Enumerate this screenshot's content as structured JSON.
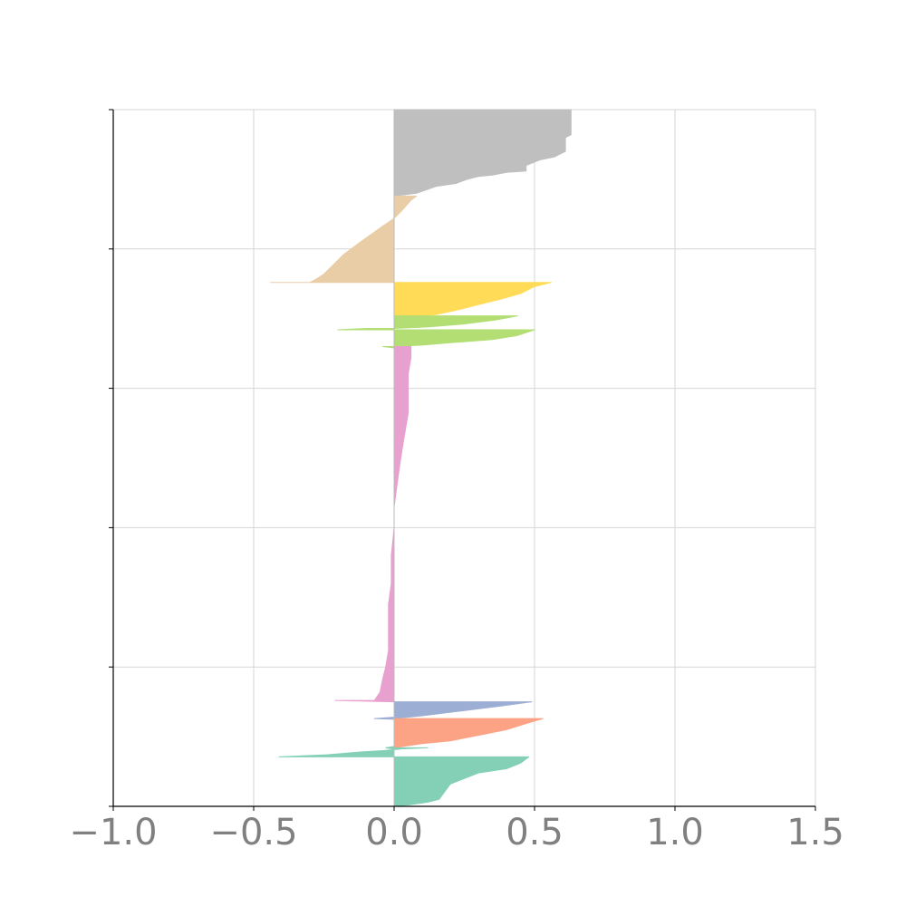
{
  "chart_data": {
    "type": "area",
    "title": "",
    "xlabel": "",
    "ylabel": "",
    "xlim": [
      -1.0,
      1.5
    ],
    "ylim": [
      0,
      5
    ],
    "x_ticks": [
      -1.0,
      -0.5,
      0.0,
      0.5,
      1.0,
      1.5
    ],
    "x_tick_labels": [
      "−1.0",
      "−0.5",
      "0.0",
      "0.5",
      "1.0",
      "1.5"
    ],
    "y_ticks": [
      0,
      1,
      2,
      3,
      4,
      5
    ],
    "y_tick_labels": [
      "",
      "",
      "",
      "",
      "",
      ""
    ],
    "grid": true,
    "legend": "none",
    "series": [
      {
        "color": "#bfbfbf",
        "points": [
          [
            0.0,
            5.0
          ],
          [
            0.63,
            5.0
          ],
          [
            0.63,
            4.82
          ],
          [
            0.61,
            4.8
          ],
          [
            0.61,
            4.7
          ],
          [
            0.59,
            4.68
          ],
          [
            0.57,
            4.66
          ],
          [
            0.52,
            4.64
          ],
          [
            0.47,
            4.6
          ],
          [
            0.47,
            4.56
          ],
          [
            0.4,
            4.55
          ],
          [
            0.35,
            4.53
          ],
          [
            0.3,
            4.52
          ],
          [
            0.26,
            4.5
          ],
          [
            0.22,
            4.47
          ],
          [
            0.15,
            4.45
          ],
          [
            0.08,
            4.4
          ],
          [
            0.0,
            4.38
          ]
        ]
      },
      {
        "color": "#e9cda6",
        "points": [
          [
            0.0,
            4.38
          ],
          [
            0.08,
            4.38
          ],
          [
            0.06,
            4.35
          ],
          [
            0.03,
            4.28
          ],
          [
            0.0,
            4.22
          ],
          [
            -0.05,
            4.15
          ],
          [
            -0.12,
            4.05
          ],
          [
            -0.18,
            3.96
          ],
          [
            -0.22,
            3.88
          ],
          [
            -0.25,
            3.82
          ],
          [
            -0.28,
            3.78
          ],
          [
            -0.3,
            3.76
          ],
          [
            -0.44,
            3.76
          ],
          [
            0.0,
            3.76
          ]
        ]
      },
      {
        "color": "#ffdb57",
        "points": [
          [
            0.0,
            3.76
          ],
          [
            0.56,
            3.76
          ],
          [
            0.5,
            3.73
          ],
          [
            0.45,
            3.68
          ],
          [
            0.38,
            3.64
          ],
          [
            0.3,
            3.6
          ],
          [
            0.22,
            3.56
          ],
          [
            0.15,
            3.53
          ],
          [
            0.1,
            3.52
          ],
          [
            0.0,
            3.52
          ]
        ]
      },
      {
        "color": "#b2de73",
        "points": [
          [
            0.0,
            3.52
          ],
          [
            0.44,
            3.52
          ],
          [
            0.36,
            3.49
          ],
          [
            0.24,
            3.46
          ],
          [
            0.12,
            3.44
          ],
          [
            0.0,
            3.43
          ]
        ]
      },
      {
        "color": "#b2de73",
        "points": [
          [
            0.0,
            3.43
          ],
          [
            -0.1,
            3.43
          ],
          [
            -0.2,
            3.42
          ],
          [
            0.0,
            3.42
          ]
        ]
      },
      {
        "color": "#b2de73",
        "points": [
          [
            0.0,
            3.42
          ],
          [
            0.5,
            3.42
          ],
          [
            0.44,
            3.38
          ],
          [
            0.35,
            3.35
          ],
          [
            0.22,
            3.33
          ],
          [
            0.1,
            3.31
          ],
          [
            0.0,
            3.3
          ]
        ]
      },
      {
        "color": "#b2de73",
        "points": [
          [
            0.0,
            3.3
          ],
          [
            -0.04,
            3.3
          ],
          [
            0.0,
            3.29
          ]
        ]
      },
      {
        "color": "#e8a1ce",
        "points": [
          [
            0.0,
            3.3
          ],
          [
            0.06,
            3.3
          ],
          [
            0.06,
            3.22
          ],
          [
            0.05,
            3.1
          ],
          [
            0.05,
            2.95
          ],
          [
            0.05,
            2.82
          ],
          [
            0.04,
            2.7
          ],
          [
            0.03,
            2.58
          ],
          [
            0.02,
            2.45
          ],
          [
            0.01,
            2.3
          ],
          [
            0.0,
            2.15
          ],
          [
            0.0,
            2.0
          ],
          [
            -0.01,
            1.8
          ],
          [
            -0.01,
            1.6
          ],
          [
            -0.02,
            1.45
          ],
          [
            -0.02,
            1.3
          ],
          [
            -0.02,
            1.12
          ],
          [
            -0.03,
            1.0
          ],
          [
            -0.04,
            0.92
          ],
          [
            -0.05,
            0.82
          ],
          [
            -0.07,
            0.76
          ],
          [
            -0.21,
            0.76
          ],
          [
            0.0,
            0.75
          ]
        ]
      },
      {
        "color": "#9caed4",
        "points": [
          [
            0.0,
            0.75
          ],
          [
            0.49,
            0.75
          ],
          [
            0.38,
            0.72
          ],
          [
            0.22,
            0.68
          ],
          [
            0.1,
            0.65
          ],
          [
            0.0,
            0.63
          ]
        ]
      },
      {
        "color": "#9caed4",
        "points": [
          [
            0.0,
            0.64
          ],
          [
            -0.07,
            0.63
          ],
          [
            0.0,
            0.625
          ]
        ]
      },
      {
        "color": "#fca385",
        "points": [
          [
            0.0,
            0.63
          ],
          [
            0.53,
            0.63
          ],
          [
            0.48,
            0.6
          ],
          [
            0.4,
            0.55
          ],
          [
            0.3,
            0.51
          ],
          [
            0.2,
            0.47
          ],
          [
            0.1,
            0.45
          ],
          [
            0.0,
            0.42
          ]
        ]
      },
      {
        "color": "#84d0b6",
        "points": [
          [
            0.0,
            0.42
          ],
          [
            0.12,
            0.42
          ],
          [
            0.0,
            0.41
          ],
          [
            -0.03,
            0.42
          ],
          [
            0.0,
            0.43
          ]
        ]
      },
      {
        "color": "#84d0b6",
        "points": [
          [
            0.0,
            0.41
          ],
          [
            0.02,
            0.41
          ],
          [
            -0.04,
            0.4
          ],
          [
            -0.12,
            0.39
          ],
          [
            -0.24,
            0.37
          ],
          [
            -0.41,
            0.355
          ],
          [
            0.0,
            0.355
          ]
        ]
      },
      {
        "color": "#84d0b6",
        "points": [
          [
            0.0,
            0.355
          ],
          [
            0.48,
            0.355
          ],
          [
            0.45,
            0.31
          ],
          [
            0.4,
            0.27
          ],
          [
            0.3,
            0.24
          ],
          [
            0.2,
            0.16
          ],
          [
            0.16,
            0.05
          ],
          [
            0.12,
            0.03
          ],
          [
            0.05,
            0.01
          ],
          [
            0.0,
            0.0
          ]
        ]
      }
    ]
  }
}
